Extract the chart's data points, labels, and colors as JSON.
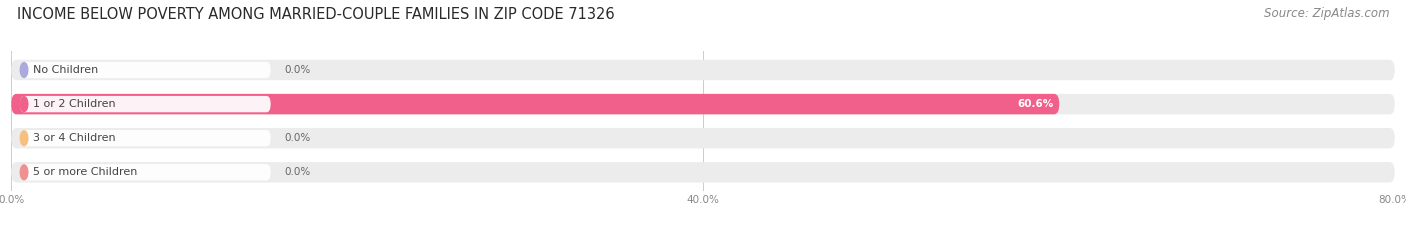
{
  "title": "INCOME BELOW POVERTY AMONG MARRIED-COUPLE FAMILIES IN ZIP CODE 71326",
  "source": "Source: ZipAtlas.com",
  "categories": [
    "No Children",
    "1 or 2 Children",
    "3 or 4 Children",
    "5 or more Children"
  ],
  "values": [
    0.0,
    60.6,
    0.0,
    0.0
  ],
  "bar_colors": [
    "#aaaadd",
    "#f0608a",
    "#f5c080",
    "#f09090"
  ],
  "xlim_data": [
    0,
    80
  ],
  "xticks": [
    0.0,
    40.0,
    80.0
  ],
  "xtick_labels": [
    "0.0%",
    "40.0%",
    "80.0%"
  ],
  "title_fontsize": 10.5,
  "source_fontsize": 8.5,
  "label_fontsize": 8,
  "value_fontsize": 7.5,
  "background_color": "#ffffff",
  "bar_bg_color": "#ececec",
  "bar_height": 0.6,
  "label_pill_color": "#ffffff",
  "label_text_color": "#444444",
  "value_color_inside": "#ffffff",
  "value_color_outside": "#666666",
  "grid_color": "#cccccc",
  "tick_color": "#888888"
}
